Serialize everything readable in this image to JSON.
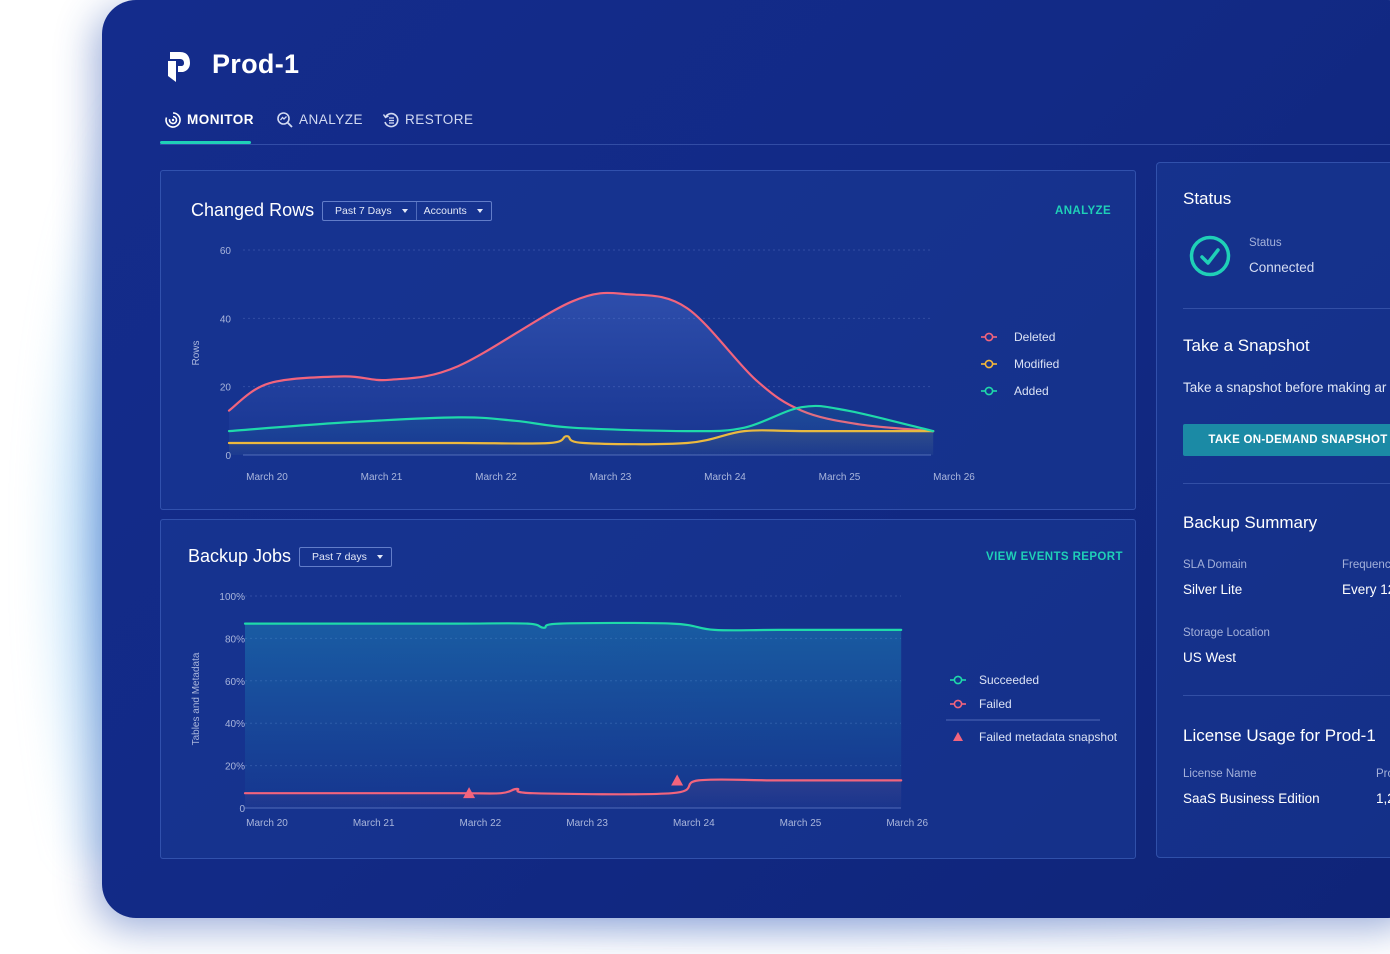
{
  "app": {
    "title": "Prod-1"
  },
  "tabs": [
    {
      "label": "MONITOR",
      "icon": "monitor-icon",
      "active": true
    },
    {
      "label": "ANALYZE",
      "icon": "analyze-icon",
      "active": false
    },
    {
      "label": "RESTORE",
      "icon": "restore-icon",
      "active": false
    }
  ],
  "changed_rows": {
    "title": "Changed Rows",
    "filters": [
      "Past 7 Days",
      "Accounts"
    ],
    "action": "ANALYZE"
  },
  "backup_jobs": {
    "title": "Backup Jobs",
    "filters": [
      "Past 7 days"
    ],
    "action": "VIEW EVENTS REPORT"
  },
  "status": {
    "title": "Status",
    "label": "Status",
    "value": "Connected"
  },
  "snapshot": {
    "title": "Take a Snapshot",
    "text": "Take a snapshot before making ar",
    "button": "TAKE ON-DEMAND SNAPSHOT"
  },
  "backup_summary": {
    "title": "Backup Summary",
    "sla_label": "SLA Domain",
    "sla_value": "Silver Lite",
    "freq_label": "Frequenc",
    "freq_value": "Every 12",
    "storage_label": "Storage Location",
    "storage_value": "US West"
  },
  "license": {
    "title": "License Usage for Prod-1",
    "name_label": "License Name",
    "name_value": "SaaS Business Edition",
    "col2_label": "Pro",
    "col2_value": "1,2"
  },
  "colors": {
    "accent": "#1fd0b7",
    "deleted": "#f2647d",
    "modified": "#f5b83a",
    "added": "#1fd9aa",
    "bg": "#132a88"
  },
  "chart_data": [
    {
      "type": "line",
      "title": "Changed Rows",
      "ylabel": "Rows",
      "xlabel": "",
      "ylim": [
        0,
        60
      ],
      "yticks": [
        0,
        20,
        40,
        60
      ],
      "categories": [
        "March 20",
        "March 21",
        "March 22",
        "March 23",
        "March 24",
        "March 25",
        "March 26"
      ],
      "series": [
        {
          "name": "Deleted",
          "color": "#f2647d",
          "x": [
            0,
            0.35,
            1,
            1.4,
            2,
            3,
            3.5,
            4,
            4.6,
            5,
            5.5,
            6.15
          ],
          "values": [
            13,
            21,
            23,
            22,
            26,
            45,
            47,
            43,
            22,
            13,
            9,
            7
          ]
        },
        {
          "name": "Modified",
          "color": "#f5b83a",
          "x": [
            0,
            1,
            2,
            2.8,
            2.95,
            3.1,
            4,
            4.5,
            5,
            6.15
          ],
          "values": [
            3.5,
            3.5,
            3.5,
            3.5,
            5.5,
            3.5,
            3.5,
            7,
            7,
            7
          ]
        },
        {
          "name": "Added",
          "color": "#1fd9aa",
          "x": [
            0,
            1,
            2,
            2.5,
            3,
            4,
            4.5,
            5,
            5.4,
            6.15
          ],
          "values": [
            7,
            9.5,
            11,
            10,
            8,
            7,
            8,
            14,
            13,
            7
          ]
        }
      ]
    },
    {
      "type": "line",
      "title": "Backup Jobs",
      "ylabel": "Tables and Metadata",
      "xlabel": "",
      "ylim": [
        0,
        100
      ],
      "ytick_labels": [
        "0",
        "20%",
        "40%",
        "60%",
        "80%",
        "100%"
      ],
      "yticks": [
        0,
        20,
        40,
        60,
        80,
        100
      ],
      "categories": [
        "March 20",
        "March 21",
        "March 22",
        "March 23",
        "March 24",
        "March 25",
        "March 26"
      ],
      "series": [
        {
          "name": "Succeeded",
          "color": "#1fd9aa",
          "x": [
            0,
            1,
            2,
            2.65,
            2.8,
            2.95,
            4,
            4.4,
            5,
            6.15
          ],
          "values": [
            87,
            87,
            87,
            87,
            85,
            87,
            87,
            84,
            84,
            84
          ]
        },
        {
          "name": "Failed",
          "color": "#f2647d",
          "x": [
            0,
            1,
            2,
            2.4,
            2.55,
            2.7,
            4,
            4.25,
            5,
            6.15
          ],
          "values": [
            7,
            7,
            7,
            7,
            9,
            7,
            7,
            13,
            13,
            13
          ]
        },
        {
          "name": "Failed metadata snapshot",
          "type": "marker",
          "color": "#f2647d",
          "x": [
            2.1,
            4.05
          ],
          "values": [
            7,
            13
          ]
        }
      ]
    }
  ]
}
